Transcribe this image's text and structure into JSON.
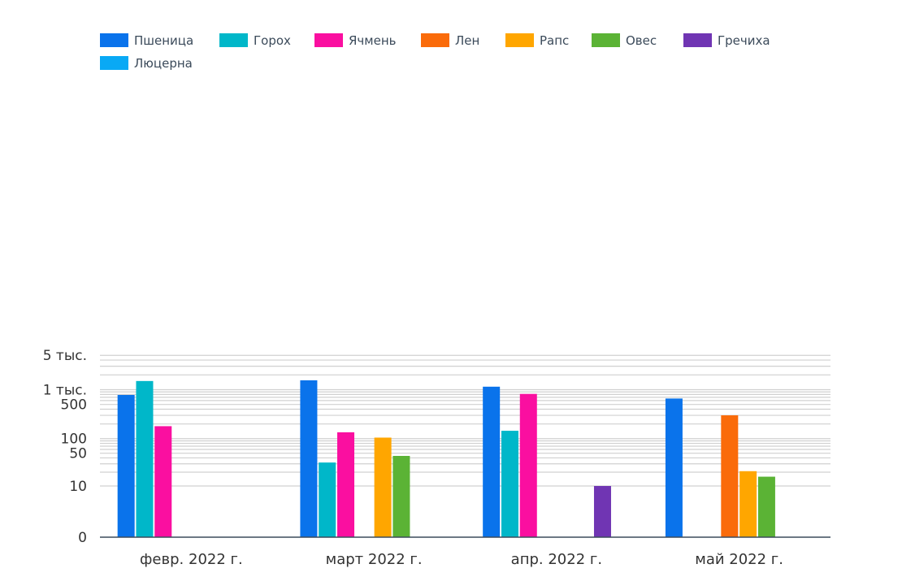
{
  "chart_data": {
    "type": "bar",
    "y_scale": "log",
    "categories": [
      "февр. 2022 г.",
      "март 2022 г.",
      "апр. 2022 г.",
      "май 2022 г."
    ],
    "y_ticks": [
      {
        "value": 0,
        "label": "0"
      },
      {
        "value": 10,
        "label": "10"
      },
      {
        "value": 50,
        "label": "50"
      },
      {
        "value": 100,
        "label": "100"
      },
      {
        "value": 500,
        "label": "500"
      },
      {
        "value": 1000,
        "label": "1 тыс."
      },
      {
        "value": 5000,
        "label": "5 тыс."
      }
    ],
    "ylim": [
      0,
      5000
    ],
    "grid": true,
    "legend_position": "top-left",
    "series": [
      {
        "name": "Пшеница",
        "color": "#0a73eb",
        "values": [
          780,
          1550,
          1150,
          660
        ]
      },
      {
        "name": "Горох",
        "color": "#00b7c9",
        "values": [
          1500,
          32,
          145,
          null
        ]
      },
      {
        "name": "Ячмень",
        "color": "#fa0fa0",
        "values": [
          180,
          135,
          820,
          null
        ]
      },
      {
        "name": "Лен",
        "color": "#fa6b0a",
        "values": [
          null,
          null,
          null,
          300
        ]
      },
      {
        "name": "Рапс",
        "color": "#ffa600",
        "values": [
          null,
          105,
          null,
          21
        ]
      },
      {
        "name": "Овес",
        "color": "#5bb335",
        "values": [
          null,
          44,
          null,
          16
        ]
      },
      {
        "name": "Гречиха",
        "color": "#7035b3",
        "values": [
          null,
          null,
          10,
          null
        ]
      },
      {
        "name": "Люцерна",
        "color": "#09a9f5",
        "values": [
          null,
          null,
          null,
          null
        ]
      }
    ]
  }
}
